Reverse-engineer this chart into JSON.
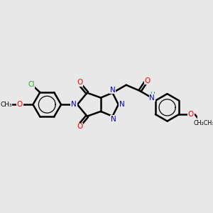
{
  "background_color": "#e8e8e8",
  "atom_colors": {
    "C": "#000000",
    "N": "#0000cc",
    "O": "#ff0000",
    "Cl": "#22aa22",
    "H": "#008888"
  },
  "bond_color": "#000000",
  "bond_width": 1.8,
  "figsize": [
    3.0,
    3.0
  ],
  "dpi": 100
}
